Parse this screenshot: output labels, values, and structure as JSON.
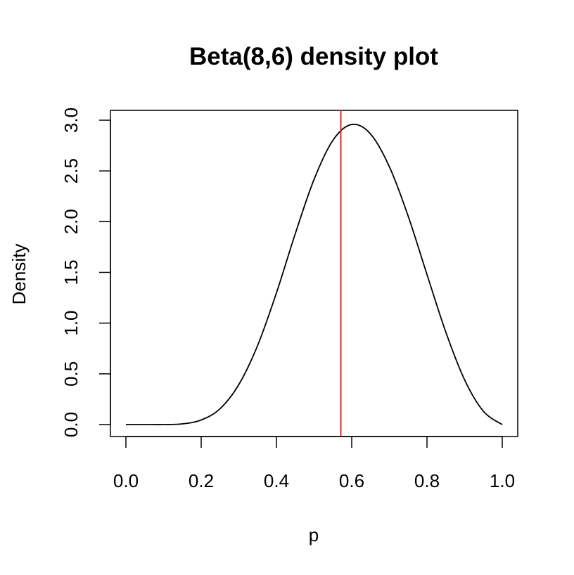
{
  "chart_data": {
    "type": "line",
    "title": "Beta(8,6) density plot",
    "xlabel": "p",
    "ylabel": "Density",
    "xlim": [
      0,
      1
    ],
    "ylim": [
      0,
      3
    ],
    "x_ticks": [
      "0.0",
      "0.2",
      "0.4",
      "0.6",
      "0.8",
      "1.0"
    ],
    "y_ticks": [
      "0.0",
      "0.5",
      "1.0",
      "1.5",
      "2.0",
      "2.5",
      "3.0"
    ],
    "series": [
      {
        "color": "#000000",
        "x": [
          0.0,
          0.05,
          0.1,
          0.15,
          0.2,
          0.25,
          0.3,
          0.35,
          0.4,
          0.45,
          0.5,
          0.55,
          0.6,
          0.65,
          0.7,
          0.75,
          0.8,
          0.85,
          0.9,
          0.95,
          1.0
        ],
        "y": [
          0.0,
          0.0,
          0.0,
          0.007,
          0.045,
          0.156,
          0.394,
          0.78,
          1.298,
          1.881,
          2.417,
          2.802,
          2.958,
          2.864,
          2.542,
          2.055,
          1.479,
          0.912,
          0.441,
          0.131,
          0.0
        ]
      }
    ],
    "reference_line": {
      "orientation": "vertical",
      "x": 0.571,
      "color": "#e0262a"
    },
    "grid": false,
    "legend": "none"
  }
}
